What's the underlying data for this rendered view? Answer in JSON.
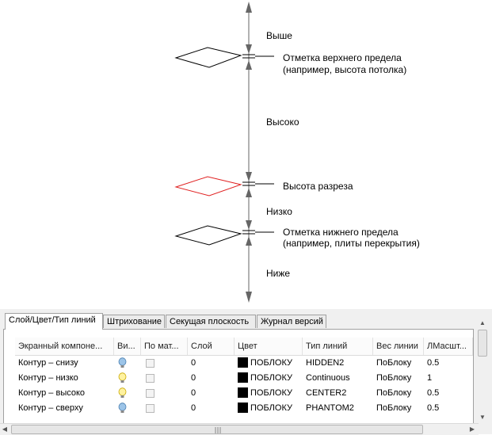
{
  "diagram": {
    "labels": {
      "above": "Выше",
      "top_limit_line1": "Отметка верхнего предела",
      "top_limit_line2": "(например, высота потолка)",
      "high": "Высоко",
      "cut_height": "Высота разреза",
      "low": "Низко",
      "bottom_limit_line1": "Отметка нижнего предела",
      "bottom_limit_line2": "(например, плиты перекрытия)",
      "below": "Ниже"
    },
    "colors": {
      "cut_plane": "#e02020",
      "line": "#000000",
      "axis": "#666666"
    }
  },
  "tabs": [
    {
      "label": "Слой/Цвет/Тип линий",
      "active": true
    },
    {
      "label": "Штрихование",
      "active": false
    },
    {
      "label": "Секущая плоскость",
      "active": false
    },
    {
      "label": "Журнал версий",
      "active": false
    }
  ],
  "table": {
    "headers": [
      "Экранный компоне...",
      "Ви...",
      "По мат...",
      "Слой",
      "Цвет",
      "Тип линий",
      "Вес линии",
      "ЛМасшт..."
    ],
    "rows": [
      {
        "component": "Контур – снизу",
        "visible_icon": "lightbulb-blue-icon",
        "layer": "0",
        "color": "ПОБЛОКУ",
        "linetype": "HIDDEN2",
        "lineweight": "ПоБлоку",
        "scale": "0.5"
      },
      {
        "component": "Контур – низко",
        "visible_icon": "lightbulb-yellow-icon",
        "layer": "0",
        "color": "ПОБЛОКУ",
        "linetype": "Continuous",
        "lineweight": "ПоБлоку",
        "scale": "1"
      },
      {
        "component": "Контур – высоко",
        "visible_icon": "lightbulb-yellow-icon",
        "layer": "0",
        "color": "ПОБЛОКУ",
        "linetype": "CENTER2",
        "lineweight": "ПоБлоку",
        "scale": "0.5"
      },
      {
        "component": "Контур – сверху",
        "visible_icon": "lightbulb-blue-icon",
        "layer": "0",
        "color": "ПОБЛОКУ",
        "linetype": "PHANTOM2",
        "lineweight": "ПоБлоку",
        "scale": "0.5"
      }
    ]
  }
}
